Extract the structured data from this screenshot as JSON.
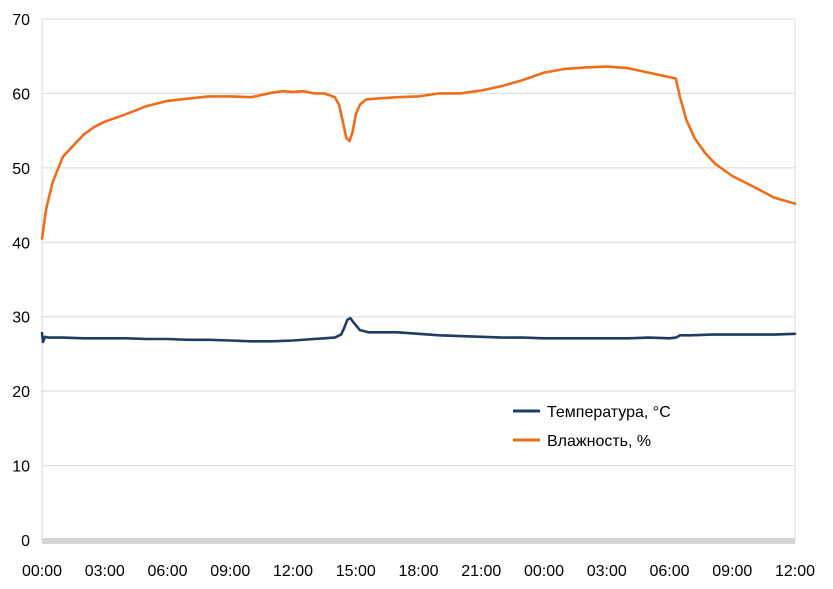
{
  "chart_data": {
    "type": "line",
    "title": "",
    "xlabel": "",
    "ylabel": "",
    "ylim": [
      0,
      70
    ],
    "y_ticks": [
      0,
      10,
      20,
      30,
      40,
      50,
      60,
      70
    ],
    "x_ticks": [
      "00:00",
      "03:00",
      "06:00",
      "09:00",
      "12:00",
      "15:00",
      "18:00",
      "21:00",
      "00:00",
      "03:00",
      "06:00",
      "09:00",
      "12:00"
    ],
    "x_unit": "hours elapsed",
    "xlim": [
      0,
      36
    ],
    "grid": "horizontal",
    "legend": "middle-right",
    "series": [
      {
        "name": "Температура, °C",
        "color": "#1f3d63",
        "x": [
          0,
          0.05,
          0.15,
          0.3,
          1,
          2,
          3,
          4,
          5,
          6,
          7,
          8,
          9,
          10,
          11,
          12,
          13,
          13.5,
          14,
          14.3,
          14.45,
          14.6,
          14.75,
          14.9,
          15.2,
          15.6,
          16,
          17,
          18,
          19,
          20,
          21,
          22,
          23,
          24,
          25,
          26,
          27,
          28,
          29,
          30,
          30.3,
          30.5,
          31,
          32,
          33,
          34,
          35,
          36
        ],
        "y": [
          27.8,
          26.6,
          27.3,
          27.2,
          27.2,
          27.1,
          27.1,
          27.1,
          27.0,
          27.0,
          26.9,
          26.9,
          26.8,
          26.7,
          26.7,
          26.8,
          27.0,
          27.1,
          27.2,
          27.6,
          28.5,
          29.6,
          29.8,
          29.2,
          28.2,
          27.9,
          27.9,
          27.9,
          27.7,
          27.5,
          27.4,
          27.3,
          27.2,
          27.2,
          27.1,
          27.1,
          27.1,
          27.1,
          27.1,
          27.2,
          27.1,
          27.2,
          27.5,
          27.5,
          27.6,
          27.6,
          27.6,
          27.6,
          27.7
        ]
      },
      {
        "name": "Влажность, %",
        "color": "#ed6d1b",
        "x": [
          0,
          0.2,
          0.5,
          1,
          1.5,
          2,
          2.5,
          3,
          4,
          5,
          6,
          7,
          8,
          9,
          10,
          11,
          11.5,
          12,
          12.5,
          13,
          13.5,
          14,
          14.2,
          14.4,
          14.55,
          14.7,
          14.85,
          15,
          15.2,
          15.5,
          16,
          17,
          18,
          19,
          20,
          21,
          22,
          23,
          24,
          25,
          26,
          27,
          28,
          29,
          30,
          30.3,
          30.5,
          30.8,
          31.2,
          31.7,
          32.2,
          33,
          34,
          35,
          36
        ],
        "y": [
          40.5,
          44.5,
          48.0,
          51.5,
          53.0,
          54.5,
          55.5,
          56.2,
          57.2,
          58.3,
          59.0,
          59.3,
          59.6,
          59.6,
          59.5,
          60.1,
          60.3,
          60.2,
          60.3,
          60.0,
          60.0,
          59.5,
          58.5,
          56.0,
          54.0,
          53.6,
          54.8,
          57.2,
          58.5,
          59.2,
          59.3,
          59.5,
          59.6,
          60.0,
          60.0,
          60.4,
          61.0,
          61.8,
          62.8,
          63.3,
          63.5,
          63.6,
          63.4,
          62.8,
          62.2,
          62.0,
          59.5,
          56.5,
          54.0,
          52.0,
          50.5,
          48.9,
          47.5,
          46.0,
          45.2
        ]
      }
    ]
  }
}
